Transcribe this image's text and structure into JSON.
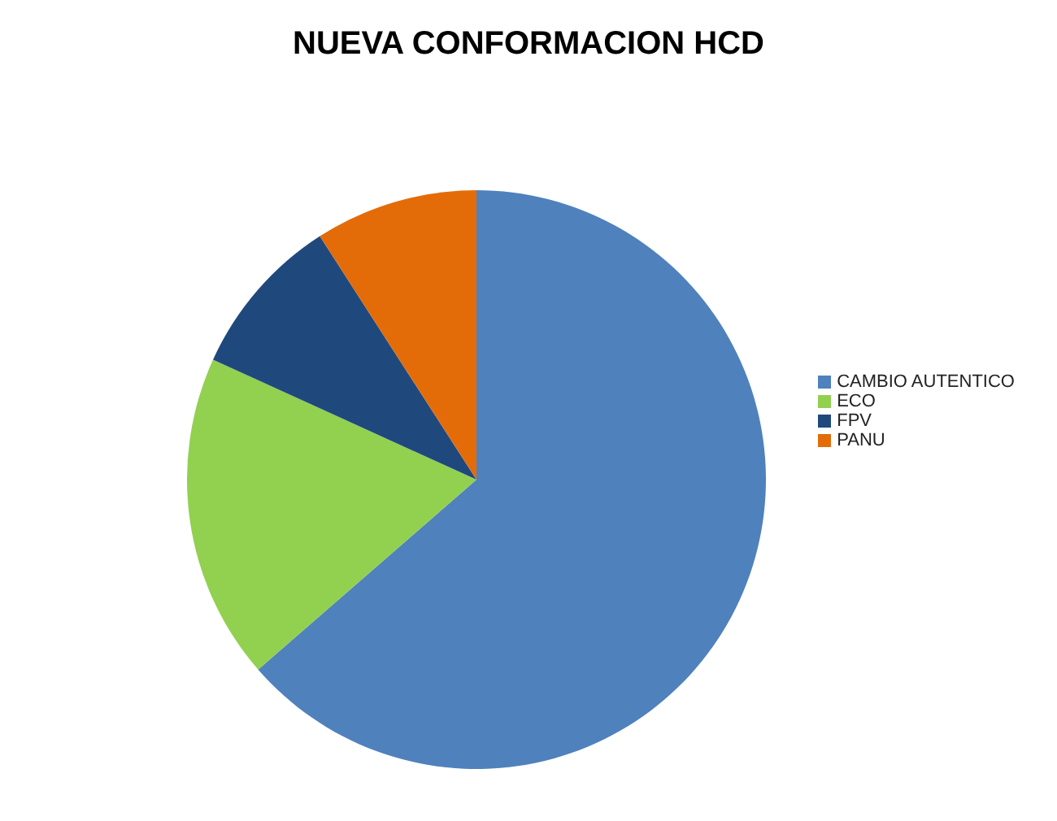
{
  "chart_data": {
    "type": "pie",
    "title": "NUEVA CONFORMACION HCD",
    "categories": [
      "CAMBIO AUTENTICO",
      "ECO",
      "FPV",
      "PANU"
    ],
    "values": [
      63.6,
      18.2,
      9.1,
      9.1
    ],
    "colors": [
      "#4f81bd",
      "#92d050",
      "#1f497d",
      "#e36c09"
    ],
    "legend": "right"
  }
}
